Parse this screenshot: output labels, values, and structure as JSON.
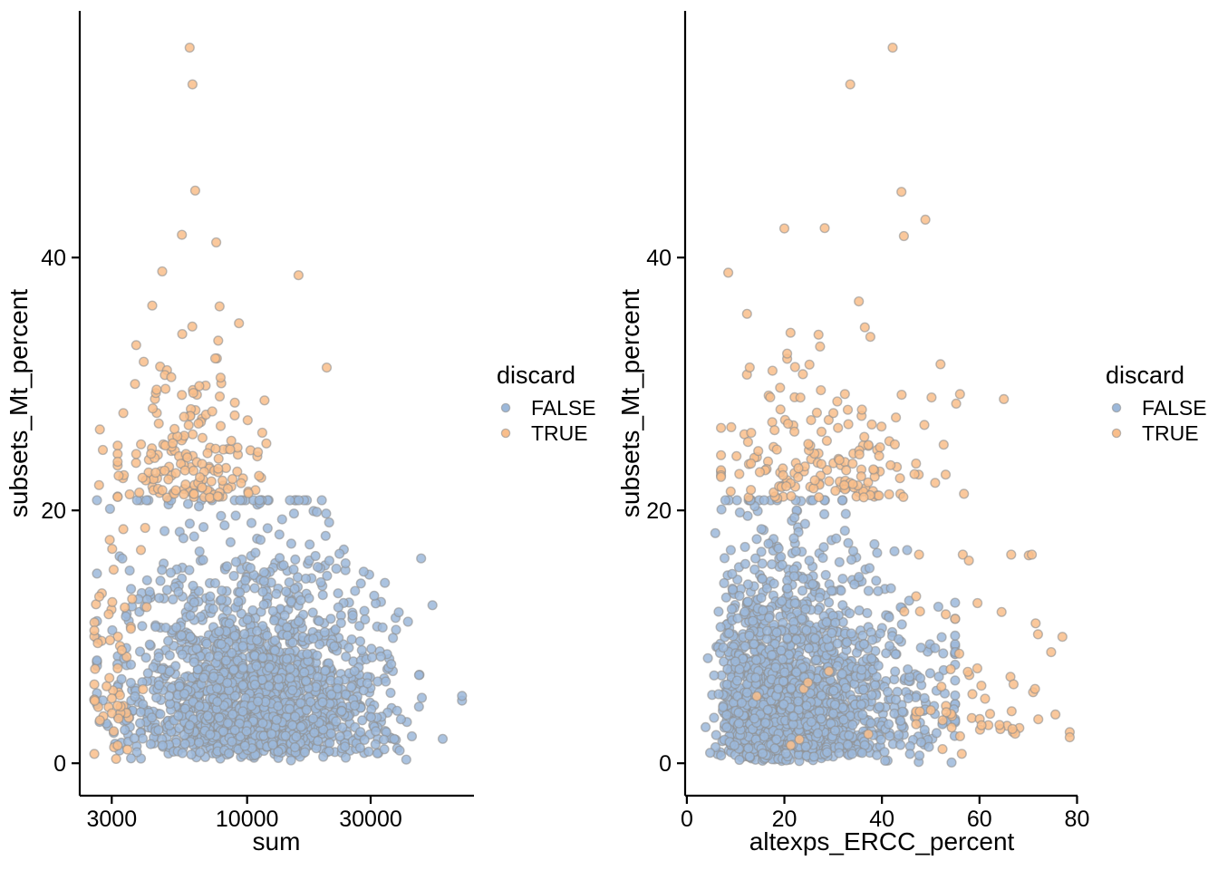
{
  "figure": {
    "background": "#FFFFFF"
  },
  "axis": {
    "line_color": "#000000",
    "text_color": "#000000",
    "tick_length": 9
  },
  "marker": {
    "radius": 4.9,
    "stroke": "#8F8F8F",
    "stroke_opacity": 0.6,
    "stroke_width": 1.4,
    "fill_opacity": 0.85
  },
  "legend": {
    "title": "discard",
    "items": [
      {
        "label": "FALSE",
        "color": "#9CB8DA"
      },
      {
        "label": "TRUE",
        "color": "#F9BE8B"
      }
    ]
  },
  "chart_data": [
    {
      "type": "scatter",
      "panel": "left",
      "title": "",
      "xlabel": "sum",
      "ylabel": "subsets_Mt_percent",
      "x_scale": "log10",
      "xlim": [
        2250,
        77000
      ],
      "ylim": [
        -2.5,
        59.5
      ],
      "grid": false,
      "x_ticks": [
        {
          "v": 3000,
          "label": "3000"
        },
        {
          "v": 10000,
          "label": "10000"
        },
        {
          "v": 30000,
          "label": "30000"
        }
      ],
      "y_ticks": [
        {
          "v": 0,
          "label": "0"
        },
        {
          "v": 20,
          "label": "20"
        },
        {
          "v": 40,
          "label": "40"
        }
      ],
      "series": [
        {
          "name": "FALSE",
          "color": "#9CB8DA",
          "n_visible_approx": 2900,
          "clusters": [
            {
              "n": 1800,
              "x": {
                "dist": "normal",
                "log10": true,
                "mu": 4.04,
                "sd": 0.25,
                "min": 3.42,
                "max": 4.83
              },
              "y": {
                "dist": "gamma",
                "shape": 1.9,
                "scale": 3.4,
                "offset": 0.15,
                "max": 20.8
              },
              "cap": {
                "from": 4.3,
                "base": 20.8,
                "slope": 28
              }
            }
          ],
          "points": [
            [
              47000,
              16.2
            ],
            [
              52000,
              12.5
            ]
          ]
        },
        {
          "name": "TRUE",
          "color": "#F9BE8B",
          "n_visible_approx": 300,
          "clusters": [
            {
              "n": 60,
              "x": {
                "dist": "normal",
                "log10": true,
                "mu": 3.49,
                "sd": 0.07,
                "min": 3.41,
                "max": 3.68
              },
              "y": {
                "dist": "gamma",
                "shape": 1.7,
                "scale": 4.5,
                "offset": 0.2,
                "max": 30
              }
            },
            {
              "n": 170,
              "x": {
                "dist": "normal",
                "log10": true,
                "mu": 3.78,
                "sd": 0.14,
                "min": 3.5,
                "max": 4.33
              },
              "y": {
                "dist": "gamma",
                "shape": 1.25,
                "scale": 3.4,
                "offset": 20.9,
                "max": 43
              }
            }
          ],
          "points": [
            [
              6000,
              56.6
            ],
            [
              6150,
              53.7
            ],
            [
              6300,
              45.3
            ],
            [
              5600,
              41.8
            ],
            [
              7600,
              41.2
            ],
            [
              4700,
              38.9
            ],
            [
              15800,
              38.6
            ],
            [
              4300,
              36.2
            ],
            [
              9300,
              34.8
            ],
            [
              20300,
              31.3
            ],
            [
              7900,
              30.5
            ],
            [
              2700,
              26.4
            ],
            [
              2680,
              22.0
            ],
            [
              2650,
              9.5
            ],
            [
              2700,
              3.4
            ]
          ]
        }
      ]
    },
    {
      "type": "scatter",
      "panel": "right",
      "title": "",
      "xlabel": "altexps_ERCC_percent",
      "ylabel": "subsets_Mt_percent",
      "x_scale": "linear",
      "xlim": [
        -0.4,
        81
      ],
      "ylim": [
        -2.5,
        59.5
      ],
      "grid": false,
      "x_ticks": [
        {
          "v": 0,
          "label": "0"
        },
        {
          "v": 20,
          "label": "20"
        },
        {
          "v": 40,
          "label": "40"
        },
        {
          "v": 60,
          "label": "60"
        },
        {
          "v": 80,
          "label": "80"
        }
      ],
      "y_ticks": [
        {
          "v": 0,
          "label": "0"
        },
        {
          "v": 20,
          "label": "20"
        },
        {
          "v": 40,
          "label": "40"
        }
      ],
      "series": [
        {
          "name": "FALSE",
          "color": "#9CB8DA",
          "n_visible_approx": 2900,
          "clusters": [
            {
              "n": 1900,
              "x": {
                "dist": "gamma",
                "shape": 3.5,
                "scale": 5.6,
                "offset": 3.2,
                "min": 3.6,
                "max": 55
              },
              "y": {
                "dist": "gamma",
                "shape": 1.8,
                "scale": 3.3,
                "offset": 0.1,
                "max": 20.8
              },
              "cap": {
                "from": 38,
                "base": 20.8,
                "slope": 0.45
              }
            }
          ],
          "points": []
        },
        {
          "name": "TRUE",
          "color": "#F9BE8B",
          "n_visible_approx": 300,
          "clusters": [
            {
              "n": 175,
              "x": {
                "dist": "normal",
                "mu": 30,
                "sd": 11,
                "min": 7,
                "max": 66
              },
              "y": {
                "dist": "gamma",
                "shape": 1.25,
                "scale": 3.4,
                "offset": 20.9,
                "max": 43
              }
            },
            {
              "n": 60,
              "x": {
                "dist": "normal",
                "mu": 60,
                "sd": 8,
                "min": 47,
                "max": 78.5
              },
              "y": {
                "dist": "gamma",
                "shape": 1.8,
                "scale": 3.6,
                "offset": 0.5,
                "max": 16.5
              }
            },
            {
              "n": 8,
              "x": {
                "dist": "normal",
                "mu": 24,
                "sd": 10,
                "min": 8,
                "max": 45
              },
              "y": {
                "dist": "gamma",
                "shape": 1.5,
                "scale": 3.0,
                "offset": 0.8,
                "max": 12
              }
            }
          ],
          "points": [
            [
              42.2,
              56.6
            ],
            [
              33.5,
              53.7
            ],
            [
              44,
              45.2
            ],
            [
              20,
              42.3
            ],
            [
              44.5,
              41.7
            ],
            [
              8.5,
              38.8
            ],
            [
              27,
              33.9
            ],
            [
              56,
              29.2
            ],
            [
              65,
              28.8
            ],
            [
              72,
              10.2
            ],
            [
              77,
              10.0
            ],
            [
              9,
              21.5
            ]
          ]
        }
      ]
    }
  ]
}
